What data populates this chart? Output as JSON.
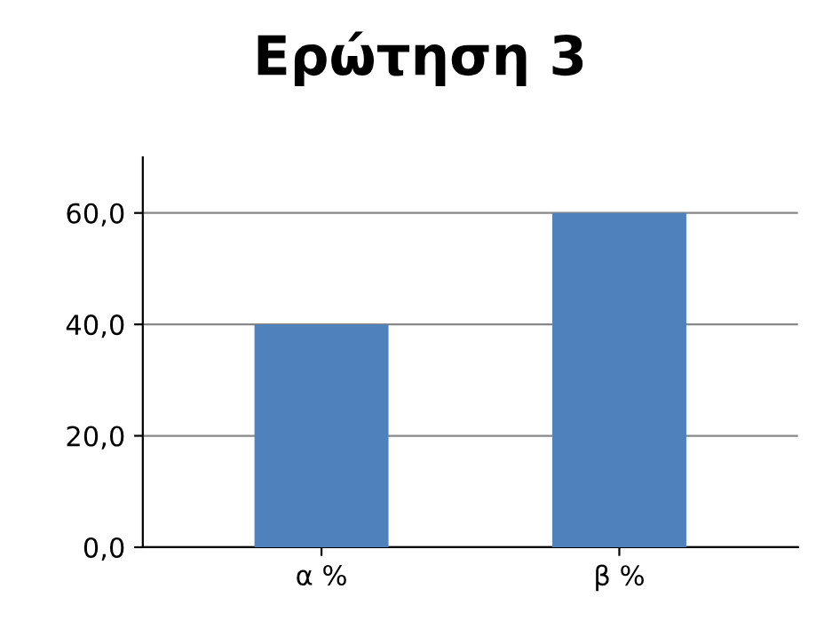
{
  "chart_data": {
    "type": "bar",
    "title": "Ερώτηση 3",
    "categories": [
      "α %",
      "β %"
    ],
    "values": [
      40,
      60
    ],
    "color": "#4f81bd",
    "ylim": [
      0,
      70
    ],
    "yticks": [
      {
        "value": 0,
        "label": "0,0"
      },
      {
        "value": 20,
        "label": "20,0"
      },
      {
        "value": 40,
        "label": "40,0"
      },
      {
        "value": 60,
        "label": "60,0"
      }
    ],
    "grid": "y"
  }
}
